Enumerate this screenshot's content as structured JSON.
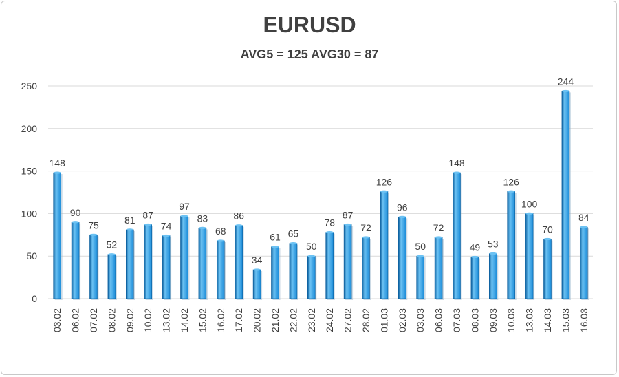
{
  "chart_data": {
    "type": "bar",
    "title": "EURUSD",
    "subtitle": "AVG5 = 125 AVG30 = 87",
    "categories": [
      "03.02",
      "06.02",
      "07.02",
      "08.02",
      "09.02",
      "10.02",
      "13.02",
      "14.02",
      "15.02",
      "16.02",
      "17.02",
      "20.02",
      "21.02",
      "22.02",
      "23.02",
      "24.02",
      "27.02",
      "28.02",
      "01.03",
      "02.03",
      "03.03",
      "06.03",
      "07.03",
      "08.03",
      "09.03",
      "10.03",
      "13.03",
      "14.03",
      "15.03",
      "16.03"
    ],
    "values": [
      148,
      90,
      75,
      52,
      81,
      87,
      74,
      97,
      83,
      68,
      86,
      34,
      61,
      65,
      50,
      78,
      87,
      72,
      126,
      96,
      50,
      72,
      148,
      49,
      53,
      126,
      100,
      70,
      244,
      84
    ],
    "yticks": [
      0,
      50,
      100,
      150,
      200,
      250
    ],
    "ylim": [
      0,
      250
    ],
    "grid": true,
    "legend": "none",
    "colors": {
      "bar": "#1a8bd8",
      "bar_light": "#6cc2f3",
      "bar_dark": "#0b5f9e",
      "text": "#404040",
      "grid": "#d9d9d9"
    }
  }
}
